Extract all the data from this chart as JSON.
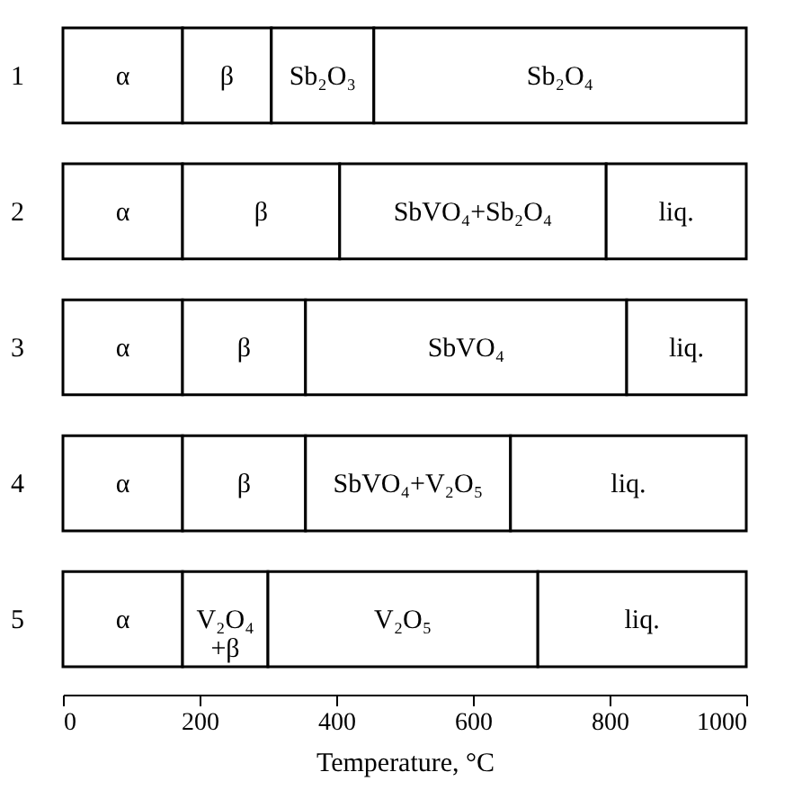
{
  "chart_data": {
    "type": "bar",
    "orientation": "horizontal",
    "stacked": true,
    "xlabel": "Temperature, °C",
    "categories": [
      "1",
      "2",
      "3",
      "4",
      "5"
    ],
    "xlim": [
      0,
      1000
    ],
    "xticks": [
      0,
      200,
      400,
      600,
      800,
      1000
    ],
    "series": [
      {
        "color": "#ffffff",
        "values": [
          175,
          175,
          175,
          175,
          175
        ],
        "value_labels": [
          "α",
          "α",
          "α",
          "α",
          "α"
        ]
      },
      {
        "color": "#ffffff",
        "values": [
          130,
          230,
          180,
          180,
          125
        ],
        "value_labels": [
          "β",
          "β",
          "β",
          "β",
          "V₂O₄\n+β"
        ]
      },
      {
        "color": "#ffffff",
        "values": [
          150,
          390,
          470,
          300,
          395
        ],
        "value_labels": [
          "Sb₂O₃",
          "SbVO₄+Sb₂O₄",
          "SbVO₄",
          "SbVO₄+V₂O₅",
          "V₂O₅"
        ]
      },
      {
        "color": "#ffffff",
        "values": [
          545,
          205,
          175,
          345,
          305
        ],
        "value_labels": [
          "Sb₂O₄",
          "liq.",
          "liq.",
          "liq.",
          "liq."
        ]
      }
    ]
  }
}
